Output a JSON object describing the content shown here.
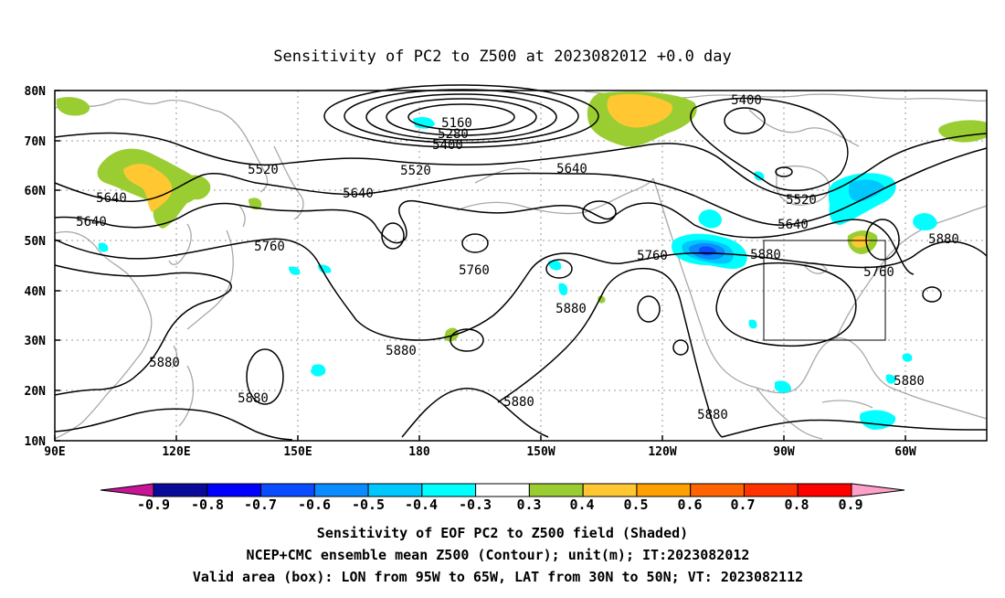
{
  "title": "Sensitivity of PC2 to Z500 at 2023082012 +0.0 day",
  "map": {
    "lat_labels": [
      "80N",
      "70N",
      "60N",
      "50N",
      "40N",
      "30N",
      "20N",
      "10N"
    ],
    "lon_labels": [
      "90E",
      "120E",
      "150E",
      "180",
      "150W",
      "120W",
      "90W",
      "60W"
    ],
    "contour_labels": [
      {
        "text": "5160"
      },
      {
        "text": "5280"
      },
      {
        "text": "5400"
      },
      {
        "text": "5400"
      },
      {
        "text": "5520"
      },
      {
        "text": "5520"
      },
      {
        "text": "5520"
      },
      {
        "text": "5640"
      },
      {
        "text": "5640"
      },
      {
        "text": "5640"
      },
      {
        "text": "5640"
      },
      {
        "text": "5640"
      },
      {
        "text": "5760"
      },
      {
        "text": "5760"
      },
      {
        "text": "5760"
      },
      {
        "text": "5760"
      },
      {
        "text": "5880"
      },
      {
        "text": "5880"
      },
      {
        "text": "5880"
      },
      {
        "text": "5880"
      },
      {
        "text": "5880"
      },
      {
        "text": "5880"
      },
      {
        "text": "5880"
      },
      {
        "text": "5880"
      },
      {
        "text": "5880"
      }
    ],
    "valid_box": {
      "lon_from": "95W",
      "lon_to": "65W",
      "lat_from": "30N",
      "lat_to": "50N"
    }
  },
  "colorbar": {
    "labels": [
      "-0.9",
      "-0.8",
      "-0.7",
      "-0.6",
      "-0.5",
      "-0.4",
      "-0.3",
      "0.3",
      "0.4",
      "0.5",
      "0.6",
      "0.7",
      "0.8",
      "0.9"
    ],
    "colors": [
      "#0a0a9a",
      "#0000ff",
      "#0a4cff",
      "#0a8cff",
      "#00c8ff",
      "#00ffff",
      "#ffffff",
      "#9acd32",
      "#ffc832",
      "#ffa000",
      "#ff6400",
      "#ff3200",
      "#ff0000"
    ],
    "low_end_color": "#c81496",
    "high_end_color": "#ffa0c8"
  },
  "footer": {
    "line1": "Sensitivity of EOF PC2 to Z500 field (Shaded)",
    "line2": "NCEP+CMC ensemble mean Z500 (Contour); unit(m); IT:2023082012",
    "line3": "Valid area (box): LON from 95W to 65W, LAT from 30N to 50N; VT: 2023082112"
  }
}
